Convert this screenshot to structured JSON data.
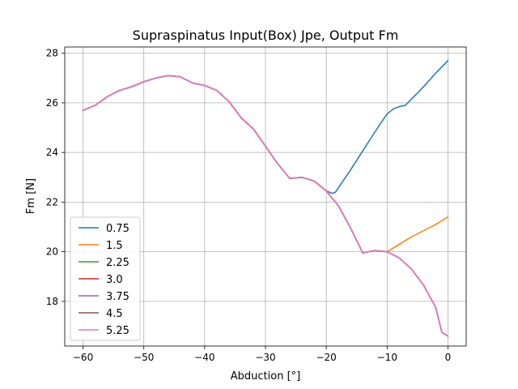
{
  "chart_data": {
    "type": "line",
    "title": "Supraspinatus Input(Box) Jpe, Output Fm",
    "xlabel": "Abduction [°]",
    "ylabel": "Fm [N]",
    "xlim": [
      -63,
      3
    ],
    "ylim": [
      16.2,
      28.25
    ],
    "xticks": [
      -60,
      -50,
      -40,
      -30,
      -20,
      -10,
      0
    ],
    "xtick_labels": [
      "−60",
      "−50",
      "−40",
      "−30",
      "−20",
      "−10",
      "0"
    ],
    "yticks": [
      18,
      20,
      22,
      24,
      26,
      28
    ],
    "ytick_labels": [
      "18",
      "20",
      "22",
      "24",
      "26",
      "28"
    ],
    "grid": true,
    "legend_position": "lower-left",
    "series": [
      {
        "name": "0.75",
        "color": "#1f77b4",
        "x": [
          -60,
          -58,
          -56,
          -54,
          -52,
          -50,
          -48,
          -46,
          -44,
          -42,
          -40,
          -38,
          -36,
          -34,
          -32,
          -30,
          -28,
          -26,
          -24,
          -22,
          -20,
          -19,
          -18.5,
          -16,
          -13,
          -11,
          -10,
          -9,
          -8,
          -7,
          -6,
          -4,
          -2,
          0
        ],
        "y": [
          25.7,
          25.9,
          26.25,
          26.5,
          26.65,
          26.85,
          27.0,
          27.1,
          27.05,
          26.8,
          26.7,
          26.5,
          26.05,
          25.4,
          24.95,
          24.25,
          23.55,
          22.95,
          23.0,
          22.85,
          22.45,
          22.35,
          22.4,
          23.3,
          24.45,
          25.2,
          25.55,
          25.75,
          25.85,
          25.9,
          26.15,
          26.65,
          27.2,
          27.7
        ]
      },
      {
        "name": "1.5",
        "color": "#ff7f0e",
        "x": [
          -60,
          -58,
          -56,
          -54,
          -52,
          -50,
          -48,
          -46,
          -44,
          -42,
          -40,
          -38,
          -36,
          -34,
          -32,
          -30,
          -28,
          -26,
          -24,
          -22,
          -20,
          -18,
          -16,
          -14,
          -12,
          -10,
          -8,
          -6,
          -4,
          -2,
          0
        ],
        "y": [
          25.7,
          25.9,
          26.25,
          26.5,
          26.65,
          26.85,
          27.0,
          27.1,
          27.05,
          26.8,
          26.7,
          26.5,
          26.05,
          25.4,
          24.95,
          24.25,
          23.55,
          22.95,
          23.0,
          22.85,
          22.45,
          21.85,
          20.95,
          19.95,
          20.05,
          20.0,
          20.3,
          20.6,
          20.85,
          21.1,
          21.4
        ]
      },
      {
        "name": "2.25",
        "color": "#2ca02c",
        "x": [
          -60,
          -58,
          -56,
          -54,
          -52,
          -50,
          -48,
          -46,
          -44,
          -42,
          -40,
          -38,
          -36,
          -34,
          -32,
          -30,
          -28,
          -26,
          -24,
          -22,
          -20,
          -18,
          -16,
          -14,
          -12,
          -10,
          -8,
          -6,
          -4,
          -2,
          -1,
          0
        ],
        "y": [
          25.7,
          25.9,
          26.25,
          26.5,
          26.65,
          26.85,
          27.0,
          27.1,
          27.05,
          26.8,
          26.7,
          26.5,
          26.05,
          25.4,
          24.95,
          24.25,
          23.55,
          22.95,
          23.0,
          22.85,
          22.45,
          21.85,
          20.95,
          19.95,
          20.05,
          20.0,
          19.75,
          19.3,
          18.65,
          17.75,
          16.75,
          16.6
        ]
      },
      {
        "name": "3.0",
        "color": "#d62728",
        "x": [
          -60,
          -58,
          -56,
          -54,
          -52,
          -50,
          -48,
          -46,
          -44,
          -42,
          -40,
          -38,
          -36,
          -34,
          -32,
          -30,
          -28,
          -26,
          -24,
          -22,
          -20,
          -18,
          -16,
          -14,
          -12,
          -10,
          -8,
          -6,
          -4,
          -2,
          -1,
          0
        ],
        "y": [
          25.7,
          25.9,
          26.25,
          26.5,
          26.65,
          26.85,
          27.0,
          27.1,
          27.05,
          26.8,
          26.7,
          26.5,
          26.05,
          25.4,
          24.95,
          24.25,
          23.55,
          22.95,
          23.0,
          22.85,
          22.45,
          21.85,
          20.95,
          19.95,
          20.05,
          20.0,
          19.75,
          19.3,
          18.65,
          17.75,
          16.75,
          16.6
        ]
      },
      {
        "name": "3.75",
        "color": "#9467bd",
        "x": [
          -60,
          -58,
          -56,
          -54,
          -52,
          -50,
          -48,
          -46,
          -44,
          -42,
          -40,
          -38,
          -36,
          -34,
          -32,
          -30,
          -28,
          -26,
          -24,
          -22,
          -20,
          -18,
          -16,
          -14,
          -12,
          -10,
          -8,
          -6,
          -4,
          -2,
          -1,
          0
        ],
        "y": [
          25.7,
          25.9,
          26.25,
          26.5,
          26.65,
          26.85,
          27.0,
          27.1,
          27.05,
          26.8,
          26.7,
          26.5,
          26.05,
          25.4,
          24.95,
          24.25,
          23.55,
          22.95,
          23.0,
          22.85,
          22.45,
          21.85,
          20.95,
          19.95,
          20.05,
          20.0,
          19.75,
          19.3,
          18.65,
          17.75,
          16.75,
          16.6
        ]
      },
      {
        "name": "4.5",
        "color": "#8c564b",
        "x": [
          -60,
          -58,
          -56,
          -54,
          -52,
          -50,
          -48,
          -46,
          -44,
          -42,
          -40,
          -38,
          -36,
          -34,
          -32,
          -30,
          -28,
          -26,
          -24,
          -22,
          -20,
          -18,
          -16,
          -14,
          -12,
          -10,
          -8,
          -6,
          -4,
          -2,
          -1,
          0
        ],
        "y": [
          25.7,
          25.9,
          26.25,
          26.5,
          26.65,
          26.85,
          27.0,
          27.1,
          27.05,
          26.8,
          26.7,
          26.5,
          26.05,
          25.4,
          24.95,
          24.25,
          23.55,
          22.95,
          23.0,
          22.85,
          22.45,
          21.85,
          20.95,
          19.95,
          20.05,
          20.0,
          19.75,
          19.3,
          18.65,
          17.75,
          16.75,
          16.6
        ]
      },
      {
        "name": "5.25",
        "color": "#e377c2",
        "x": [
          -60,
          -58,
          -56,
          -54,
          -52,
          -50,
          -48,
          -46,
          -44,
          -42,
          -40,
          -38,
          -36,
          -34,
          -32,
          -30,
          -28,
          -26,
          -24,
          -22,
          -20,
          -18,
          -16,
          -14,
          -12,
          -10,
          -8,
          -6,
          -4,
          -2,
          -1,
          0
        ],
        "y": [
          25.7,
          25.9,
          26.25,
          26.5,
          26.65,
          26.85,
          27.0,
          27.1,
          27.05,
          26.8,
          26.7,
          26.5,
          26.05,
          25.4,
          24.95,
          24.25,
          23.55,
          22.95,
          23.0,
          22.85,
          22.45,
          21.85,
          20.95,
          19.95,
          20.05,
          20.0,
          19.75,
          19.3,
          18.65,
          17.75,
          16.75,
          16.6
        ]
      }
    ]
  }
}
